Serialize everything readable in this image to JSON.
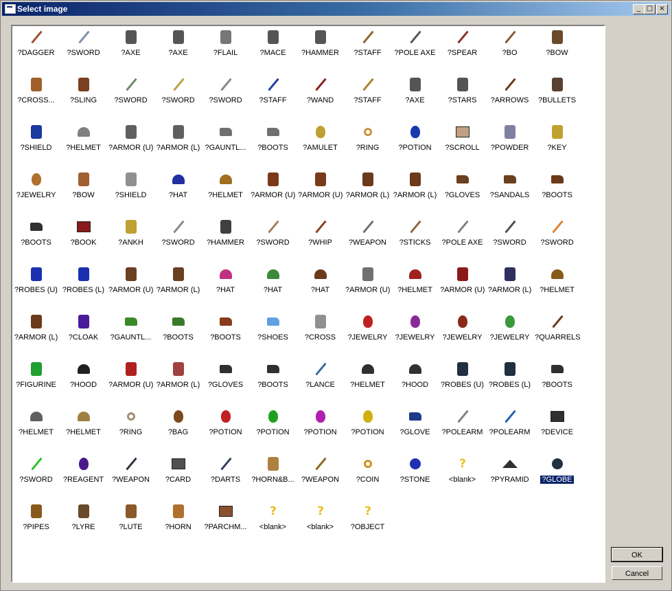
{
  "window": {
    "title": "Select image",
    "min_symbol": "_",
    "max_symbol": "□",
    "close_symbol": "×"
  },
  "buttons": {
    "ok": "OK",
    "cancel": "Cancel"
  },
  "selected_label": "?GLOBE",
  "items": [
    {
      "label": "?DAGGER",
      "icon": "dagger-icon",
      "color": "#a05030"
    },
    {
      "label": "?SWORD",
      "icon": "sword-icon",
      "color": "#7a90a8"
    },
    {
      "label": "?AXE",
      "icon": "axe-icon",
      "color": "#555555"
    },
    {
      "label": "?AXE",
      "icon": "axe-icon",
      "color": "#555555"
    },
    {
      "label": "?FLAIL",
      "icon": "flail-icon",
      "color": "#777777"
    },
    {
      "label": "?MACE",
      "icon": "mace-icon",
      "color": "#555555"
    },
    {
      "label": "?HAMMER",
      "icon": "hammer-icon",
      "color": "#555555"
    },
    {
      "label": "?STAFF",
      "icon": "staff-icon",
      "color": "#8a6a2a"
    },
    {
      "label": "?POLE AXE",
      "icon": "pole-axe-icon",
      "color": "#555555"
    },
    {
      "label": "?SPEAR",
      "icon": "spear-icon",
      "color": "#8a3030"
    },
    {
      "label": "?BO",
      "icon": "bo-icon",
      "color": "#8a5a30"
    },
    {
      "label": "?BOW",
      "icon": "bow-icon",
      "color": "#6a4a2a"
    },
    {
      "label": "?CROSS...",
      "icon": "crossbow-icon",
      "color": "#a0602a"
    },
    {
      "label": "?SLING",
      "icon": "sling-icon",
      "color": "#7a4020"
    },
    {
      "label": "?SWORD",
      "icon": "sword-icon",
      "color": "#6a8a6a"
    },
    {
      "label": "?SWORD",
      "icon": "sword-icon",
      "color": "#c0a040"
    },
    {
      "label": "?SWORD",
      "icon": "sword-icon",
      "color": "#888888"
    },
    {
      "label": "?STAFF",
      "icon": "staff-icon",
      "color": "#2040a0"
    },
    {
      "label": "?WAND",
      "icon": "wand-icon",
      "color": "#8a2020"
    },
    {
      "label": "?STAFF",
      "icon": "staff-icon",
      "color": "#b08030"
    },
    {
      "label": "?AXE",
      "icon": "axe-icon",
      "color": "#555555"
    },
    {
      "label": "?STARS",
      "icon": "stars-icon",
      "color": "#555555"
    },
    {
      "label": "?ARROWS",
      "icon": "arrows-icon",
      "color": "#6a3a1a"
    },
    {
      "label": "?BULLETS",
      "icon": "bullets-icon",
      "color": "#5a4030"
    },
    {
      "label": "?SHIELD",
      "icon": "shield-icon",
      "color": "#1a3aa0"
    },
    {
      "label": "?HELMET",
      "icon": "helmet-icon",
      "color": "#808080"
    },
    {
      "label": "?ARMOR (U)",
      "icon": "armor-icon",
      "color": "#606060"
    },
    {
      "label": "?ARMOR (L)",
      "icon": "leg-armor-icon",
      "color": "#606060"
    },
    {
      "label": "?GAUNTL...",
      "icon": "gauntlets-icon",
      "color": "#707070"
    },
    {
      "label": "?BOOTS",
      "icon": "boots-icon",
      "color": "#707070"
    },
    {
      "label": "?AMULET",
      "icon": "amulet-icon",
      "color": "#c0a030"
    },
    {
      "label": "?RING",
      "icon": "ring-icon",
      "color": "#d09040"
    },
    {
      "label": "?POTION",
      "icon": "potion-icon",
      "color": "#1a3ab0"
    },
    {
      "label": "?SCROLL",
      "icon": "scroll-icon",
      "color": "#c0a080"
    },
    {
      "label": "?POWDER",
      "icon": "powder-icon",
      "color": "#8080a0"
    },
    {
      "label": "?KEY",
      "icon": "key-icon",
      "color": "#c0a030"
    },
    {
      "label": "?JEWELRY",
      "icon": "jewelry-icon",
      "color": "#b07030"
    },
    {
      "label": "?BOW",
      "icon": "bow-icon",
      "color": "#a06030"
    },
    {
      "label": "?SHIELD",
      "icon": "shield-icon",
      "color": "#909090"
    },
    {
      "label": "?HAT",
      "icon": "hat-icon",
      "color": "#2030a0"
    },
    {
      "label": "?HELMET",
      "icon": "helmet-icon",
      "color": "#a07020"
    },
    {
      "label": "?ARMOR (U)",
      "icon": "armor-icon",
      "color": "#7a3a1a"
    },
    {
      "label": "?ARMOR (U)",
      "icon": "armor-icon",
      "color": "#7a3a1a"
    },
    {
      "label": "?ARMOR (L)",
      "icon": "leg-armor-icon",
      "color": "#6a3a1a"
    },
    {
      "label": "?ARMOR (L)",
      "icon": "leg-armor-icon",
      "color": "#6a3a1a"
    },
    {
      "label": "?GLOVES",
      "icon": "gloves-icon",
      "color": "#6a4020"
    },
    {
      "label": "?SANDALS",
      "icon": "sandals-icon",
      "color": "#6a4020"
    },
    {
      "label": "?BOOTS",
      "icon": "boots-icon",
      "color": "#6a3a1a"
    },
    {
      "label": "?BOOTS",
      "icon": "boots-icon",
      "color": "#303030"
    },
    {
      "label": "?BOOK",
      "icon": "book-icon",
      "color": "#8a1a1a"
    },
    {
      "label": "?ANKH",
      "icon": "ankh-icon",
      "color": "#c0a030"
    },
    {
      "label": "?SWORD",
      "icon": "sword-icon",
      "color": "#888888"
    },
    {
      "label": "?HAMMER",
      "icon": "hammer-icon",
      "color": "#404040"
    },
    {
      "label": "?SWORD",
      "icon": "sword-icon",
      "color": "#a08060"
    },
    {
      "label": "?WHIP",
      "icon": "whip-icon",
      "color": "#8a4020"
    },
    {
      "label": "?WEAPON",
      "icon": "weapon-icon",
      "color": "#707070"
    },
    {
      "label": "?STICKS",
      "icon": "sticks-icon",
      "color": "#8a6a3a"
    },
    {
      "label": "?POLE AXE",
      "icon": "pole-axe-icon",
      "color": "#808080"
    },
    {
      "label": "?SWORD",
      "icon": "sword-icon",
      "color": "#505050"
    },
    {
      "label": "?SWORD",
      "icon": "sword-icon",
      "color": "#e08030"
    },
    {
      "label": "?ROBES (U)",
      "icon": "robes-icon",
      "color": "#1a30b0"
    },
    {
      "label": "?ROBES (L)",
      "icon": "robes-icon",
      "color": "#1a30b0"
    },
    {
      "label": "?ARMOR (U)",
      "icon": "armor-icon",
      "color": "#6a4020"
    },
    {
      "label": "?ARMOR (L)",
      "icon": "leg-armor-icon",
      "color": "#6a4020"
    },
    {
      "label": "?HAT",
      "icon": "hat-icon",
      "color": "#c03080"
    },
    {
      "label": "?HAT",
      "icon": "hat-icon",
      "color": "#3a8a3a"
    },
    {
      "label": "?HAT",
      "icon": "hat-icon",
      "color": "#6a3a1a"
    },
    {
      "label": "?ARMOR (U)",
      "icon": "armor-icon",
      "color": "#707070"
    },
    {
      "label": "?HELMET",
      "icon": "helmet-icon",
      "color": "#a02020"
    },
    {
      "label": "?ARMOR (U)",
      "icon": "armor-icon",
      "color": "#8a1a1a"
    },
    {
      "label": "?ARMOR (L)",
      "icon": "leg-armor-icon",
      "color": "#303060"
    },
    {
      "label": "?HELMET",
      "icon": "helmet-icon",
      "color": "#8a5a1a"
    },
    {
      "label": "?ARMOR (L)",
      "icon": "leg-armor-icon",
      "color": "#6a3a1a"
    },
    {
      "label": "?CLOAK",
      "icon": "cloak-icon",
      "color": "#4a1a9a"
    },
    {
      "label": "?GAUNTL...",
      "icon": "gauntlets-icon",
      "color": "#3a8a2a"
    },
    {
      "label": "?BOOTS",
      "icon": "boots-icon",
      "color": "#3a7a2a"
    },
    {
      "label": "?BOOTS",
      "icon": "boots-icon",
      "color": "#8a3a1a"
    },
    {
      "label": "?SHOES",
      "icon": "shoes-icon",
      "color": "#60a0e0"
    },
    {
      "label": "?CROSS",
      "icon": "cross-icon",
      "color": "#909090"
    },
    {
      "label": "?JEWELRY",
      "icon": "jewelry-icon",
      "color": "#c02020"
    },
    {
      "label": "?JEWELRY",
      "icon": "jewelry-icon",
      "color": "#8a2a9a"
    },
    {
      "label": "?JEWELRY",
      "icon": "jewelry-icon",
      "color": "#8a2a1a"
    },
    {
      "label": "?JEWELRY",
      "icon": "jewelry-icon",
      "color": "#3a9a3a"
    },
    {
      "label": "?QUARRELS",
      "icon": "quarrels-icon",
      "color": "#6a3a1a"
    },
    {
      "label": "?FIGURINE",
      "icon": "figurine-icon",
      "color": "#20a030"
    },
    {
      "label": "?HOOD",
      "icon": "hood-icon",
      "color": "#202020"
    },
    {
      "label": "?ARMOR (U)",
      "icon": "armor-icon",
      "color": "#b02020"
    },
    {
      "label": "?ARMOR (L)",
      "icon": "leg-armor-icon",
      "color": "#a04040"
    },
    {
      "label": "?GLOVES",
      "icon": "gloves-icon",
      "color": "#303030"
    },
    {
      "label": "?BOOTS",
      "icon": "boots-icon",
      "color": "#303030"
    },
    {
      "label": "?LANCE",
      "icon": "lance-icon",
      "color": "#3a6aa0"
    },
    {
      "label": "?HELMET",
      "icon": "helmet-icon",
      "color": "#303030"
    },
    {
      "label": "?HOOD",
      "icon": "hood-icon",
      "color": "#303030"
    },
    {
      "label": "?ROBES (U)",
      "icon": "robes-icon",
      "color": "#203040"
    },
    {
      "label": "?ROBES (L)",
      "icon": "robes-icon",
      "color": "#203040"
    },
    {
      "label": "?BOOTS",
      "icon": "boots-icon",
      "color": "#303030"
    },
    {
      "label": "?HELMET",
      "icon": "helmet-icon",
      "color": "#606060"
    },
    {
      "label": "?HELMET",
      "icon": "helmet-icon",
      "color": "#a08040"
    },
    {
      "label": "?RING",
      "icon": "ring-icon",
      "color": "#a09070"
    },
    {
      "label": "?BAG",
      "icon": "bag-icon",
      "color": "#7a4a1a"
    },
    {
      "label": "?POTION",
      "icon": "potion-icon",
      "color": "#c02020"
    },
    {
      "label": "?POTION",
      "icon": "potion-icon",
      "color": "#20a020"
    },
    {
      "label": "?POTION",
      "icon": "potion-icon",
      "color": "#b020b0"
    },
    {
      "label": "?POTION",
      "icon": "potion-icon",
      "color": "#d0b010"
    },
    {
      "label": "?GLOVE",
      "icon": "glove-icon",
      "color": "#203a8a"
    },
    {
      "label": "?POLEARM",
      "icon": "polearm-icon",
      "color": "#808080"
    },
    {
      "label": "?POLEARM",
      "icon": "polearm-icon",
      "color": "#2060b0"
    },
    {
      "label": "?DEVICE",
      "icon": "device-icon",
      "color": "#303030"
    },
    {
      "label": "?SWORD",
      "icon": "sword-icon",
      "color": "#30c030"
    },
    {
      "label": "?REAGENT",
      "icon": "reagent-icon",
      "color": "#4a1a8a"
    },
    {
      "label": "?WEAPON",
      "icon": "weapon-icon",
      "color": "#303040"
    },
    {
      "label": "?CARD",
      "icon": "card-icon",
      "color": "#505050"
    },
    {
      "label": "?DARTS",
      "icon": "darts-icon",
      "color": "#304060"
    },
    {
      "label": "?HORN&B...",
      "icon": "horn-icon",
      "color": "#b08040"
    },
    {
      "label": "?WEAPON",
      "icon": "weapon-icon",
      "color": "#8a6a20"
    },
    {
      "label": "?COIN",
      "icon": "coin-icon",
      "color": "#d09020"
    },
    {
      "label": "?STONE",
      "icon": "stone-icon",
      "color": "#2030b0"
    },
    {
      "label": "<blank>",
      "icon": "question-mark-icon",
      "color": "#e8c020"
    },
    {
      "label": "?PYRAMID",
      "icon": "pyramid-icon",
      "color": "#303030"
    },
    {
      "label": "?GLOBE",
      "icon": "globe-icon",
      "color": "#203040"
    },
    {
      "label": "?PIPES",
      "icon": "pipes-icon",
      "color": "#8a5a1a"
    },
    {
      "label": "?LYRE",
      "icon": "lyre-icon",
      "color": "#6a4a2a"
    },
    {
      "label": "?LUTE",
      "icon": "lute-icon",
      "color": "#8a5a2a"
    },
    {
      "label": "?HORN",
      "icon": "horn-icon",
      "color": "#b07030"
    },
    {
      "label": "?PARCHM...",
      "icon": "parchment-icon",
      "color": "#8a5030"
    },
    {
      "label": "<blank>",
      "icon": "question-mark-icon",
      "color": "#e8c020"
    },
    {
      "label": "<blank>",
      "icon": "question-mark-icon",
      "color": "#e8c020"
    },
    {
      "label": "?OBJECT",
      "icon": "question-mark-icon",
      "color": "#e8c020"
    }
  ]
}
